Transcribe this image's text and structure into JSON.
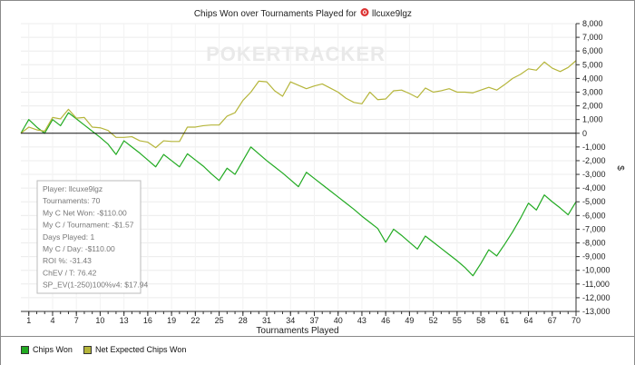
{
  "chart_data": {
    "type": "line",
    "title": "Chips Won over Tournaments Played for",
    "player_name": "llcuxe9lgz",
    "watermark": "POKERTRACKER",
    "xlabel": "Tournaments Played",
    "ylabel": "$",
    "xlim": [
      0,
      70
    ],
    "ylim": [
      -13000,
      8000
    ],
    "x_ticks": [
      1,
      4,
      7,
      10,
      13,
      16,
      19,
      22,
      25,
      28,
      31,
      34,
      37,
      40,
      43,
      46,
      49,
      52,
      55,
      58,
      61,
      64,
      67,
      70
    ],
    "y_ticks": [
      8000,
      7000,
      6000,
      5000,
      4000,
      3000,
      2000,
      1000,
      0,
      -1000,
      -2000,
      -3000,
      -4000,
      -5000,
      -6000,
      -7000,
      -8000,
      -9000,
      -10000,
      -11000,
      -12000,
      -13000
    ],
    "y_tick_labels": [
      "8,000",
      "7,000",
      "6,000",
      "5,000",
      "4,000",
      "3,000",
      "2,000",
      "1,000",
      "0",
      "-1,000",
      "-2,000",
      "-3,000",
      "-4,000",
      "-5,000",
      "-6,000",
      "-7,000",
      "-8,000",
      "-9,000",
      "-10,000",
      "-11,000",
      "-12,000",
      "-13,000"
    ],
    "grid": true,
    "legend_position": "bottom",
    "series": [
      {
        "name": "Chips Won",
        "color": "#22aa22",
        "x": [
          0,
          1,
          2,
          3,
          4,
          5,
          6,
          7,
          8,
          9,
          10,
          11,
          12,
          13,
          14,
          15,
          16,
          17,
          18,
          19,
          20,
          21,
          22,
          23,
          24,
          25,
          26,
          27,
          28,
          29,
          30,
          31,
          32,
          33,
          34,
          35,
          36,
          37,
          38,
          39,
          40,
          41,
          42,
          43,
          44,
          45,
          46,
          47,
          48,
          49,
          50,
          51,
          52,
          53,
          54,
          55,
          56,
          57,
          58,
          59,
          60,
          61,
          62,
          63,
          64,
          65,
          66,
          67,
          68,
          69,
          70
        ],
        "values": [
          0,
          1000,
          450,
          0,
          1000,
          550,
          1500,
          1050,
          600,
          150,
          -300,
          -800,
          -1550,
          -550,
          -1000,
          -1450,
          -1950,
          -2450,
          -1550,
          -2000,
          -2450,
          -1500,
          -1950,
          -2400,
          -2950,
          -3450,
          -2550,
          -3000,
          -2000,
          -1000,
          -1500,
          -2000,
          -2450,
          -2900,
          -3400,
          -3900,
          -2850,
          -3300,
          -3750,
          -4200,
          -4650,
          -5100,
          -5550,
          -6050,
          -6500,
          -6950,
          -7950,
          -7000,
          -7450,
          -7950,
          -8450,
          -7500,
          -7950,
          -8400,
          -8850,
          -9300,
          -9800,
          -10400,
          -9500,
          -8500,
          -8950,
          -8100,
          -7200,
          -6200,
          -5100,
          -5600,
          -4500,
          -5000,
          -5450,
          -5950,
          -5000
        ]
      },
      {
        "name": "Net Expected Chips Won",
        "color": "#b5b53a",
        "x": [
          0,
          1,
          2,
          3,
          4,
          5,
          6,
          7,
          8,
          9,
          10,
          11,
          12,
          13,
          14,
          15,
          16,
          17,
          18,
          19,
          20,
          21,
          22,
          23,
          24,
          25,
          26,
          27,
          28,
          29,
          30,
          31,
          32,
          33,
          34,
          35,
          36,
          37,
          38,
          39,
          40,
          41,
          42,
          43,
          44,
          45,
          46,
          47,
          48,
          49,
          50,
          51,
          52,
          53,
          54,
          55,
          56,
          57,
          58,
          59,
          60,
          61,
          62,
          63,
          64,
          65,
          66,
          67,
          68,
          69,
          70
        ],
        "values": [
          0,
          450,
          250,
          150,
          1150,
          1050,
          1750,
          1100,
          1150,
          450,
          400,
          200,
          -300,
          -300,
          -250,
          -550,
          -650,
          -1050,
          -550,
          -600,
          -600,
          450,
          450,
          550,
          600,
          600,
          1250,
          1500,
          2400,
          3000,
          3800,
          3750,
          3100,
          2700,
          3750,
          3500,
          3250,
          3450,
          3600,
          3300,
          3000,
          2550,
          2250,
          2150,
          3000,
          2450,
          2500,
          3100,
          3150,
          2900,
          2600,
          3300,
          3000,
          3100,
          3250,
          3000,
          3000,
          2950,
          3150,
          3350,
          3150,
          3550,
          4000,
          4300,
          4700,
          4600,
          5200,
          4750,
          4500,
          4800,
          5300
        ]
      }
    ],
    "info_box": {
      "lines": [
        "Player: llcuxe9lgz",
        "Tournaments: 70",
        "My C Net Won: -$110.00",
        "My C / Tournament: -$1.57",
        "Days Played: 1",
        "My C / Day: -$110.00",
        "ROI %: -31.43",
        "ChEV / T: 76.42",
        "SP_EV(1-250)100%v4: $17.94"
      ]
    }
  }
}
